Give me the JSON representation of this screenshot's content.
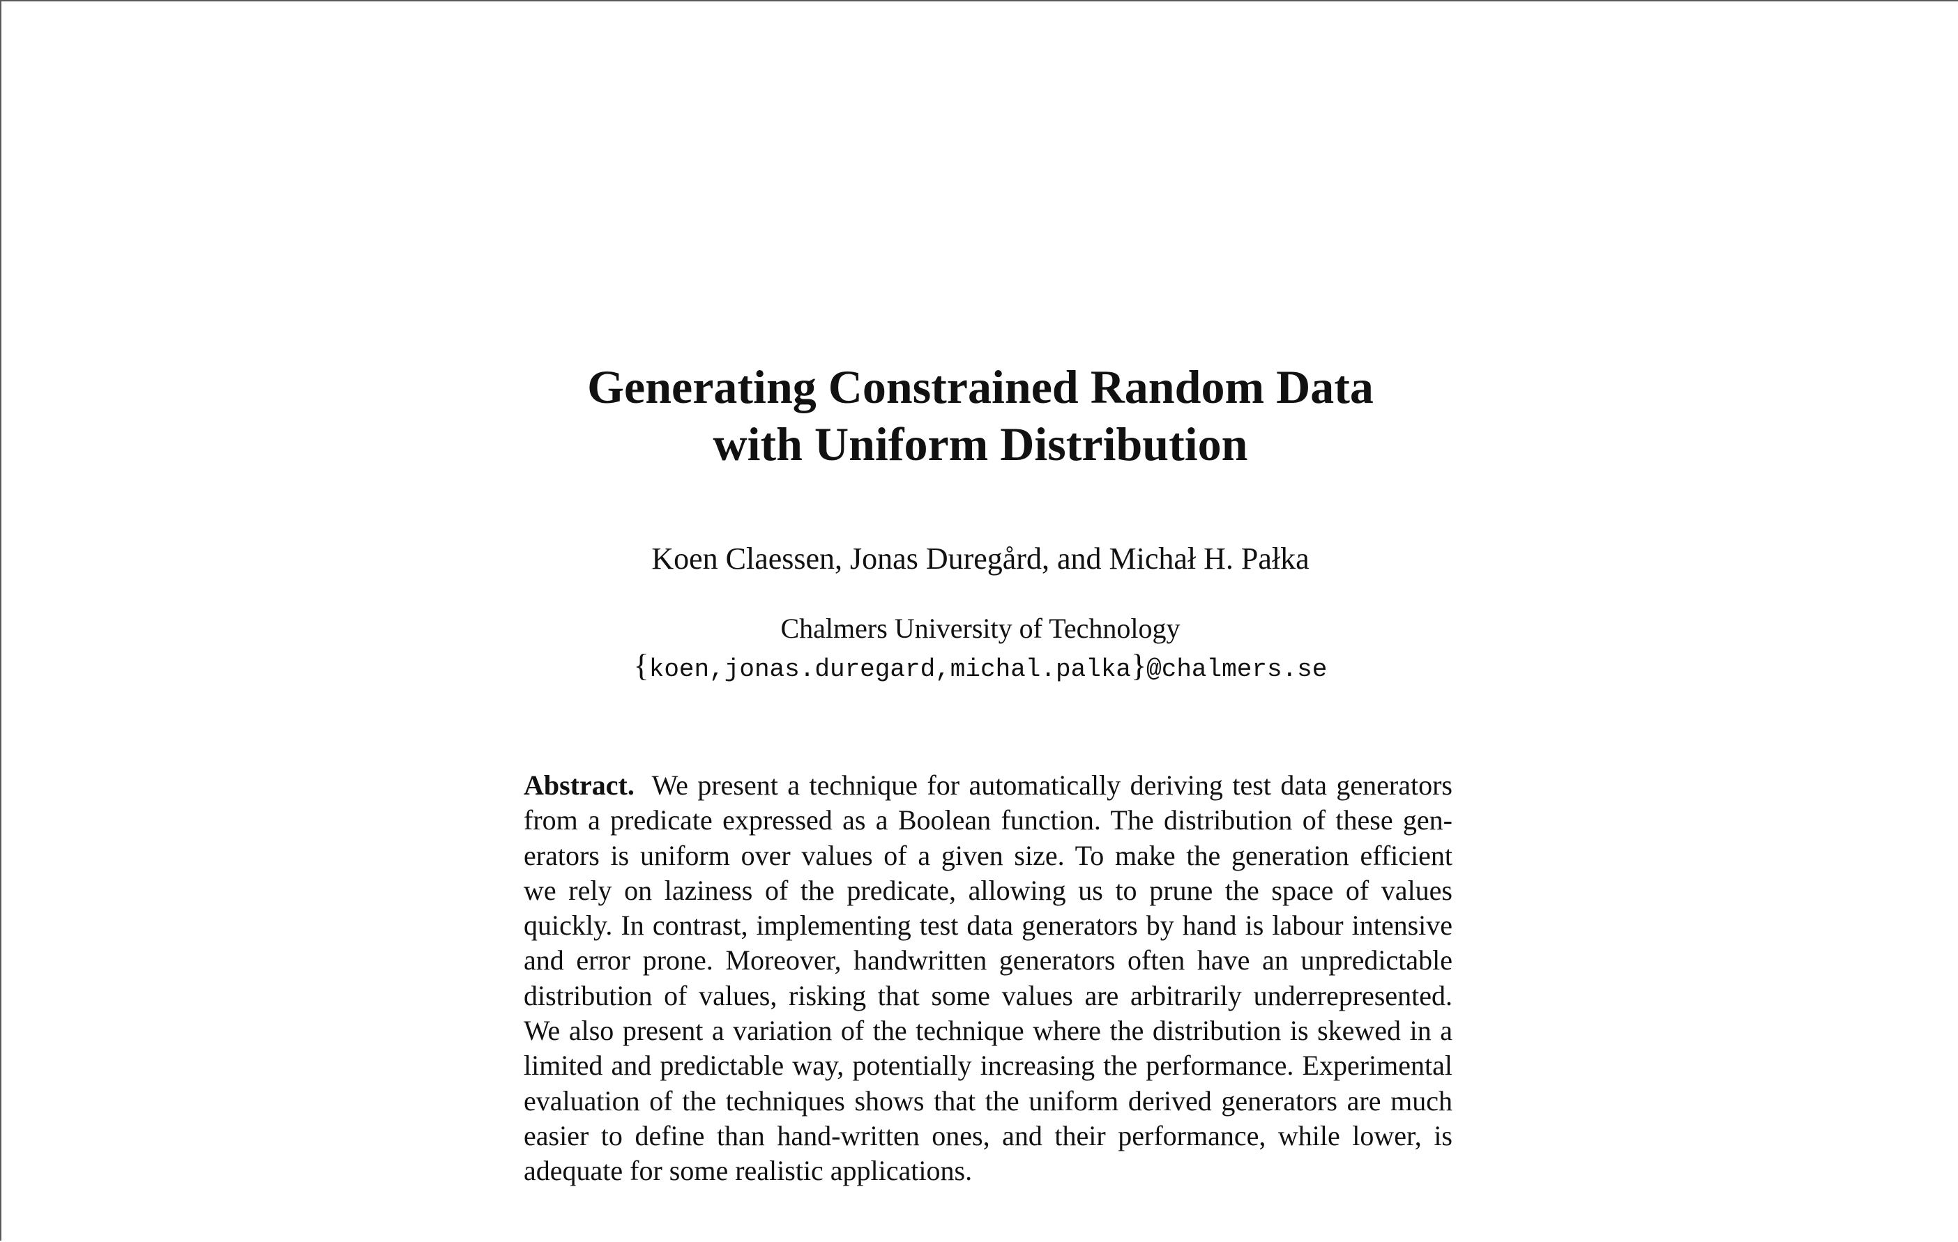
{
  "paper": {
    "title_lines": [
      "Generating Constrained Random Data",
      "with Uniform Distribution"
    ],
    "authors": "Koen Claessen, Jonas Duregård, and Michał H. Pałka",
    "affiliation": "Chalmers University of Technology",
    "email": {
      "open_brace": "{",
      "names": "koen,jonas.duregard,michal.palka",
      "close_brace": "}",
      "domain": "@chalmers.se"
    },
    "abstract": {
      "label": "Abstract.",
      "lines": [
        "We present a technique for automatically deriving test data generators",
        "from a predicate expressed as a Boolean function. The distribution of these gen-",
        "erators is uniform over values of a given size. To make the generation efficient",
        "we rely on laziness of the predicate, allowing us to prune the space of values",
        "quickly. In contrast, implementing test data generators by hand is labour intensive",
        "and error prone. Moreover, handwritten generators often have an unpredictable",
        "distribution of values, risking that some values are arbitrarily underrepresented.",
        "We also present a variation of the technique where the distribution is skewed in a",
        "limited and predictable way, potentially increasing the performance. Experimental",
        "evaluation of the techniques shows that the uniform derived generators are much",
        "easier to define than hand-written ones, and their performance, while lower, is",
        "adequate for some realistic applications."
      ]
    }
  }
}
